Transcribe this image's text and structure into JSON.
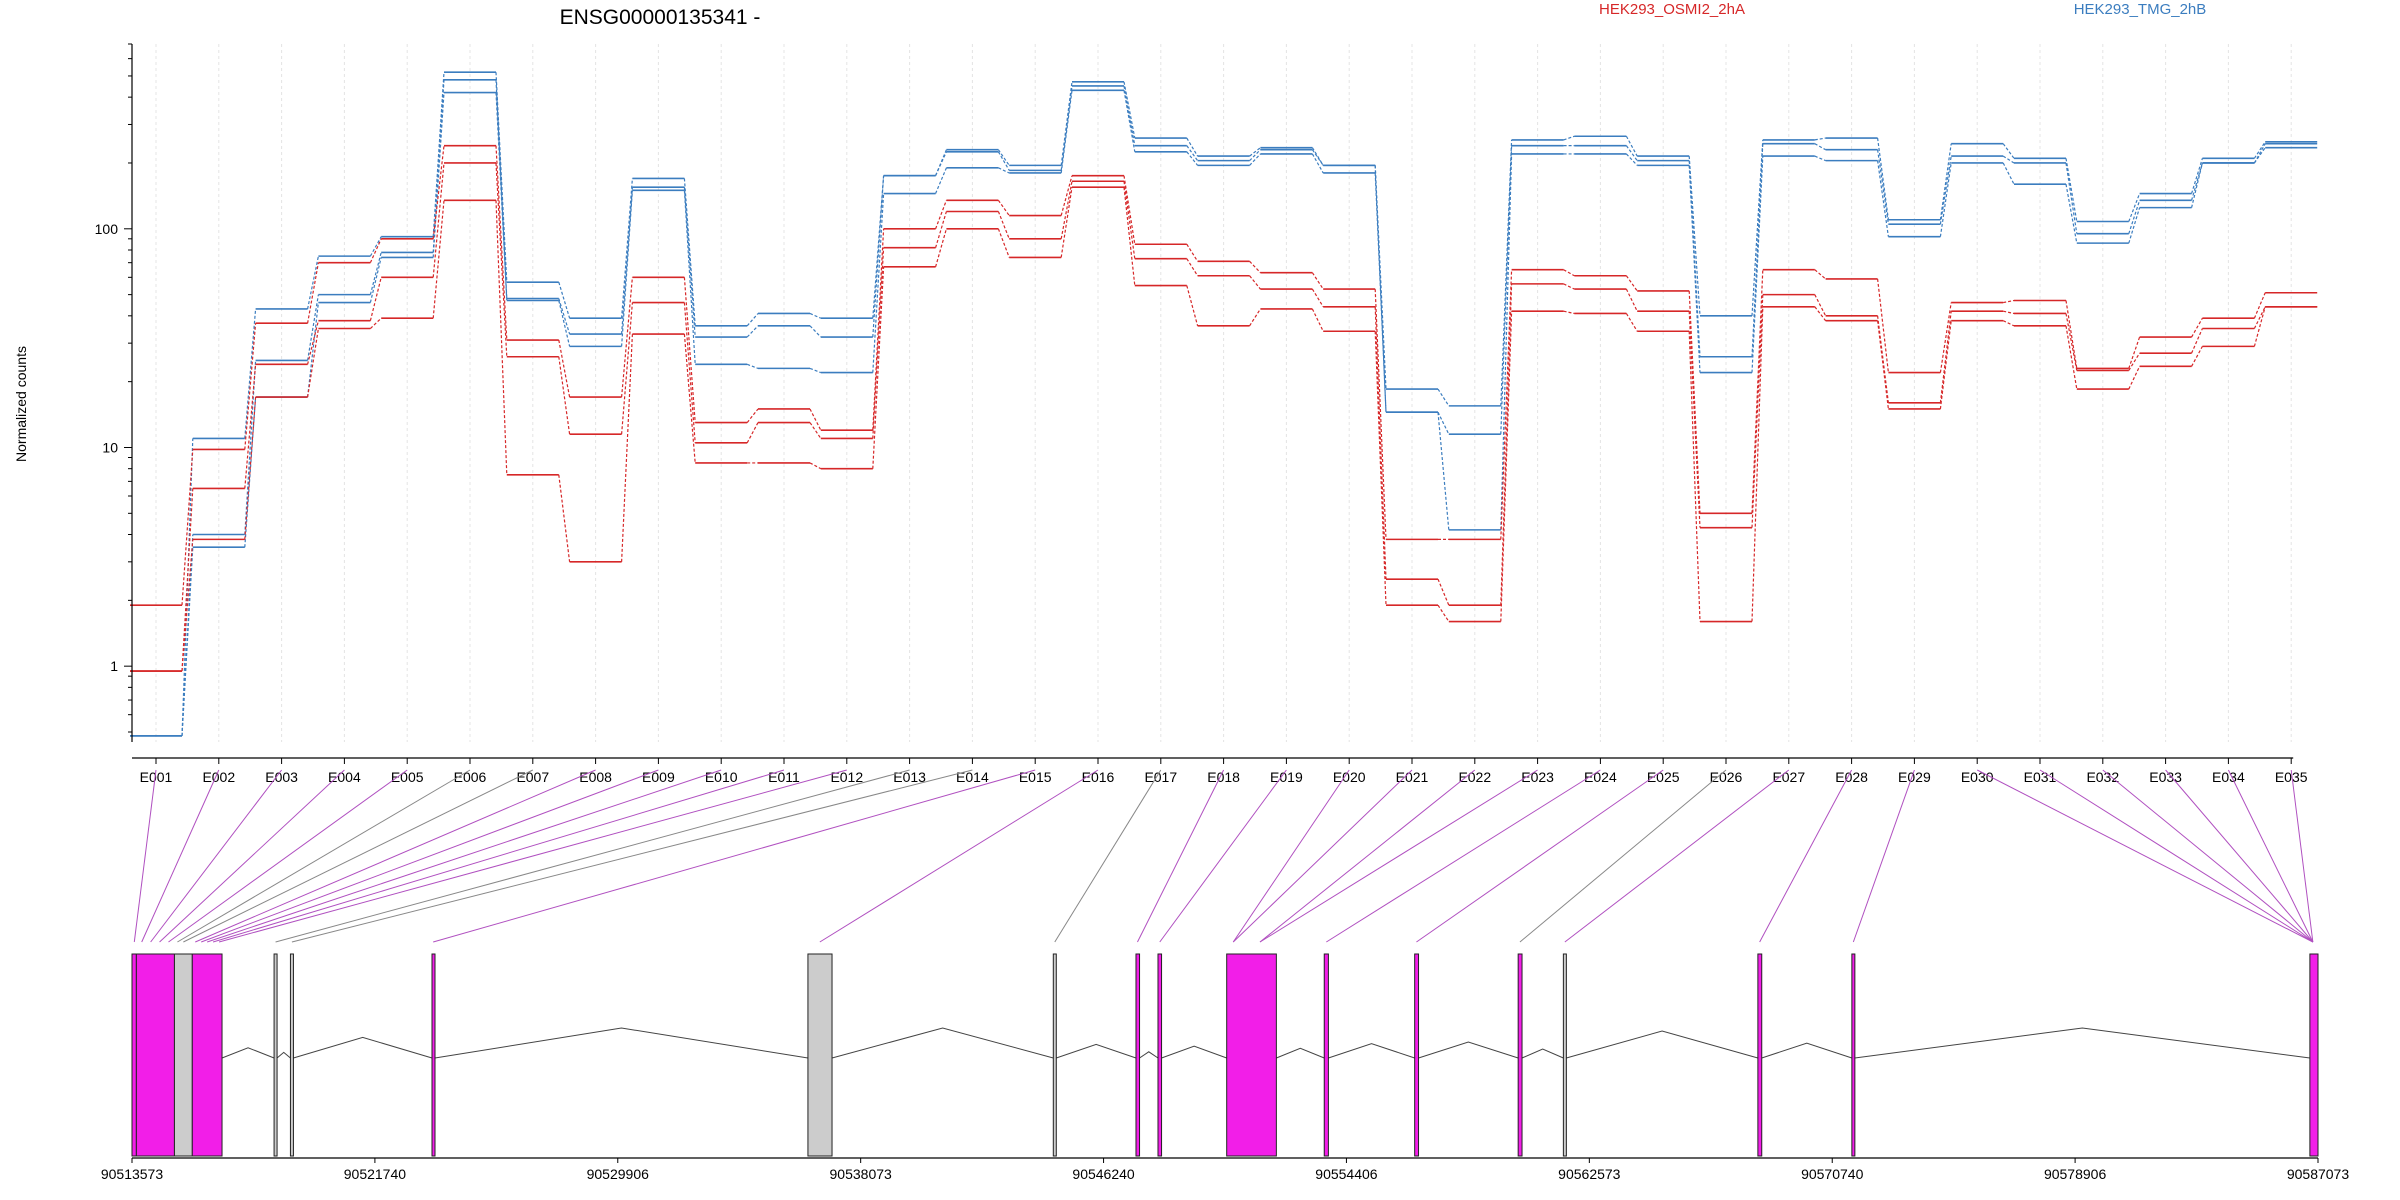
{
  "title": "ENSG00000135341 -",
  "ylabel": "Normalized counts",
  "legend": [
    {
      "name": "HEK293_OSMI2_2hA",
      "color": "#d62728"
    },
    {
      "name": "HEK293_TMG_2hB",
      "color": "#3b7dbf"
    }
  ],
  "colors": {
    "red": "#d62728",
    "blue": "#3b7dbf",
    "magenta": "#f21ee8",
    "purple_line": "#b050c0",
    "gray_line": "#888888",
    "gray_box": "#cccccc"
  },
  "chart_data": {
    "type": "line",
    "yscale": "log",
    "ylim": [
      0.45,
      700
    ],
    "yticks": [
      1,
      10,
      100
    ],
    "categories": [
      "E001",
      "E002",
      "E003",
      "E004",
      "E005",
      "E006",
      "E007",
      "E008",
      "E009",
      "E010",
      "E011",
      "E012",
      "E013",
      "E014",
      "E015",
      "E016",
      "E017",
      "E018",
      "E019",
      "E020",
      "E021",
      "E022",
      "E023",
      "E024",
      "E025",
      "E026",
      "E027",
      "E028",
      "E029",
      "E030",
      "E031",
      "E032",
      "E033",
      "E034",
      "E035"
    ],
    "series": [
      {
        "group": "blue",
        "values": [
          0.48,
          11,
          43,
          75,
          92,
          520,
          57,
          39,
          170,
          36,
          41,
          39,
          175,
          230,
          195,
          470,
          260,
          215,
          235,
          195,
          18.5,
          15.5,
          255,
          265,
          215,
          40,
          255,
          260,
          110,
          245,
          210,
          108,
          145,
          210,
          250
        ]
      },
      {
        "group": "blue",
        "values": [
          0.48,
          4,
          25,
          50,
          78,
          480,
          48,
          33,
          155,
          32,
          36,
          32,
          175,
          225,
          185,
          450,
          240,
          205,
          230,
          195,
          14.5,
          11.5,
          240,
          240,
          205,
          26,
          245,
          230,
          105,
          215,
          200,
          95,
          135,
          200,
          245
        ]
      },
      {
        "group": "blue",
        "values": [
          0.48,
          3.5,
          17,
          46,
          74,
          420,
          47,
          29,
          150,
          24,
          23,
          22,
          145,
          190,
          180,
          430,
          225,
          195,
          220,
          180,
          14.5,
          4.2,
          220,
          220,
          195,
          22,
          215,
          205,
          92,
          200,
          160,
          86,
          125,
          200,
          235
        ]
      },
      {
        "group": "red",
        "values": [
          1.9,
          9.8,
          37,
          70,
          90,
          240,
          31,
          17,
          60,
          13,
          15,
          12,
          100,
          135,
          115,
          175,
          85,
          71,
          63,
          53,
          3.8,
          3.8,
          65,
          61,
          52,
          5,
          65,
          59,
          22,
          46,
          47,
          23,
          32,
          39,
          51
        ]
      },
      {
        "group": "red",
        "values": [
          0.95,
          6.5,
          24,
          38,
          60,
          200,
          26,
          11.5,
          46,
          10.5,
          13,
          11,
          82,
          120,
          90,
          165,
          73,
          61,
          53,
          44,
          2.5,
          1.9,
          56,
          53,
          42,
          4.3,
          50,
          40,
          16,
          42,
          41,
          22.5,
          27,
          35,
          44
        ]
      },
      {
        "group": "red",
        "values": [
          0.95,
          3.8,
          17,
          35,
          39,
          135,
          7.5,
          3,
          33,
          8.5,
          8.5,
          8,
          67,
          100,
          74,
          155,
          55,
          36,
          43,
          34,
          1.9,
          1.6,
          42,
          41,
          34,
          1.6,
          44,
          38,
          15,
          38,
          36,
          18.5,
          23.5,
          29,
          44
        ]
      }
    ],
    "genome": {
      "range": [
        90513573,
        90587073
      ],
      "ticks": [
        90513573,
        90521740,
        90529906,
        90538073,
        90546240,
        90554406,
        90562573,
        90570740,
        90578906,
        90587073
      ],
      "exons": [
        {
          "start": 90513573,
          "end": 90513720,
          "type": "exon"
        },
        {
          "start": 90513720,
          "end": 90515000,
          "type": "exon"
        },
        {
          "start": 90515000,
          "end": 90515600,
          "type": "noncounted"
        },
        {
          "start": 90515600,
          "end": 90516600,
          "type": "exon"
        },
        {
          "start": 90518350,
          "end": 90518450,
          "type": "noncounted"
        },
        {
          "start": 90518900,
          "end": 90519000,
          "type": "noncounted"
        },
        {
          "start": 90523660,
          "end": 90523760,
          "type": "exon"
        },
        {
          "start": 90536300,
          "end": 90537110,
          "type": "noncounted"
        },
        {
          "start": 90544550,
          "end": 90544650,
          "type": "noncounted"
        },
        {
          "start": 90547330,
          "end": 90547450,
          "type": "exon"
        },
        {
          "start": 90548070,
          "end": 90548190,
          "type": "exon"
        },
        {
          "start": 90550380,
          "end": 90552050,
          "type": "exon"
        },
        {
          "start": 90553660,
          "end": 90553800,
          "type": "exon"
        },
        {
          "start": 90556700,
          "end": 90556830,
          "type": "exon"
        },
        {
          "start": 90560180,
          "end": 90560310,
          "type": "exon"
        },
        {
          "start": 90561700,
          "end": 90561800,
          "type": "noncounted"
        },
        {
          "start": 90568240,
          "end": 90568370,
          "type": "exon"
        },
        {
          "start": 90571400,
          "end": 90571500,
          "type": "exon"
        },
        {
          "start": 90586800,
          "end": 90587073,
          "type": "exon"
        }
      ],
      "bin_positions": [
        90513650,
        90513900,
        90514200,
        90514500,
        90514800,
        90515100,
        90515300,
        90515700,
        90515900,
        90516100,
        90516300,
        90516500,
        90518400,
        90518950,
        90523700,
        90536700,
        90544600,
        90547380,
        90548130,
        90550600,
        90551500,
        90553730,
        90556760,
        90560240,
        90561750,
        90568300,
        90571450,
        90586900
      ],
      "bin_map": [
        0,
        1,
        2,
        3,
        4,
        5,
        6,
        7,
        8,
        9,
        10,
        11,
        12,
        13,
        14,
        15,
        16,
        17,
        18,
        19,
        19,
        20,
        20,
        21,
        22,
        23,
        24,
        25,
        26,
        27,
        27,
        27,
        27,
        27,
        27
      ],
      "bin_kind": [
        "purple",
        "purple",
        "purple",
        "purple",
        "purple",
        "gray",
        "gray",
        "purple",
        "purple",
        "purple",
        "purple",
        "purple",
        "gray",
        "gray",
        "purple",
        "purple",
        "gray",
        "purple",
        "purple",
        "purple",
        "purple",
        "purple",
        "purple",
        "purple",
        "purple",
        "gray",
        "purple",
        "purple",
        "purple",
        "purple",
        "purple",
        "purple",
        "purple",
        "purple",
        "purple"
      ]
    }
  }
}
